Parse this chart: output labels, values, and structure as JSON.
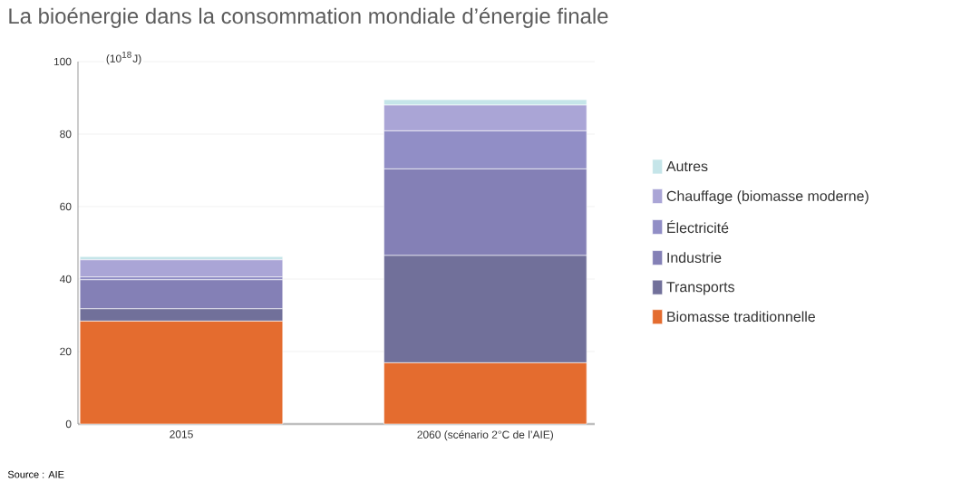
{
  "chart_data": {
    "type": "bar",
    "stacked": true,
    "title": "La bioénergie dans la consommation mondiale d’énergie finale",
    "ylabel": "(10$^{18}$J)",
    "categories": [
      "2015",
      "2060 (scénario 2°C de l’AIE)"
    ],
    "series": [
      {
        "name": "Biomasse traditionnelle",
        "color": "#e46c2f",
        "values": [
          28.4,
          16.9
        ]
      },
      {
        "name": "Transports",
        "color": "#71709a",
        "values": [
          3.4,
          29.6
        ]
      },
      {
        "name": "Industrie",
        "color": "#8480b6",
        "values": [
          8.0,
          23.9
        ]
      },
      {
        "name": "Électricité",
        "color": "#918ec6",
        "values": [
          0.8,
          10.5
        ]
      },
      {
        "name": "Chauffage (biomasse moderne)",
        "color": "#aaa5d6",
        "values": [
          4.7,
          7.1
        ]
      },
      {
        "name": "Autres",
        "color": "#c5e5e9",
        "values": [
          0.9,
          1.5
        ]
      }
    ],
    "ylim": [
      0,
      100
    ],
    "yticks": [
      0,
      20,
      40,
      60,
      80,
      100
    ],
    "grid": "y",
    "legend": "right",
    "annotations": [
      "Source : AIE"
    ]
  }
}
